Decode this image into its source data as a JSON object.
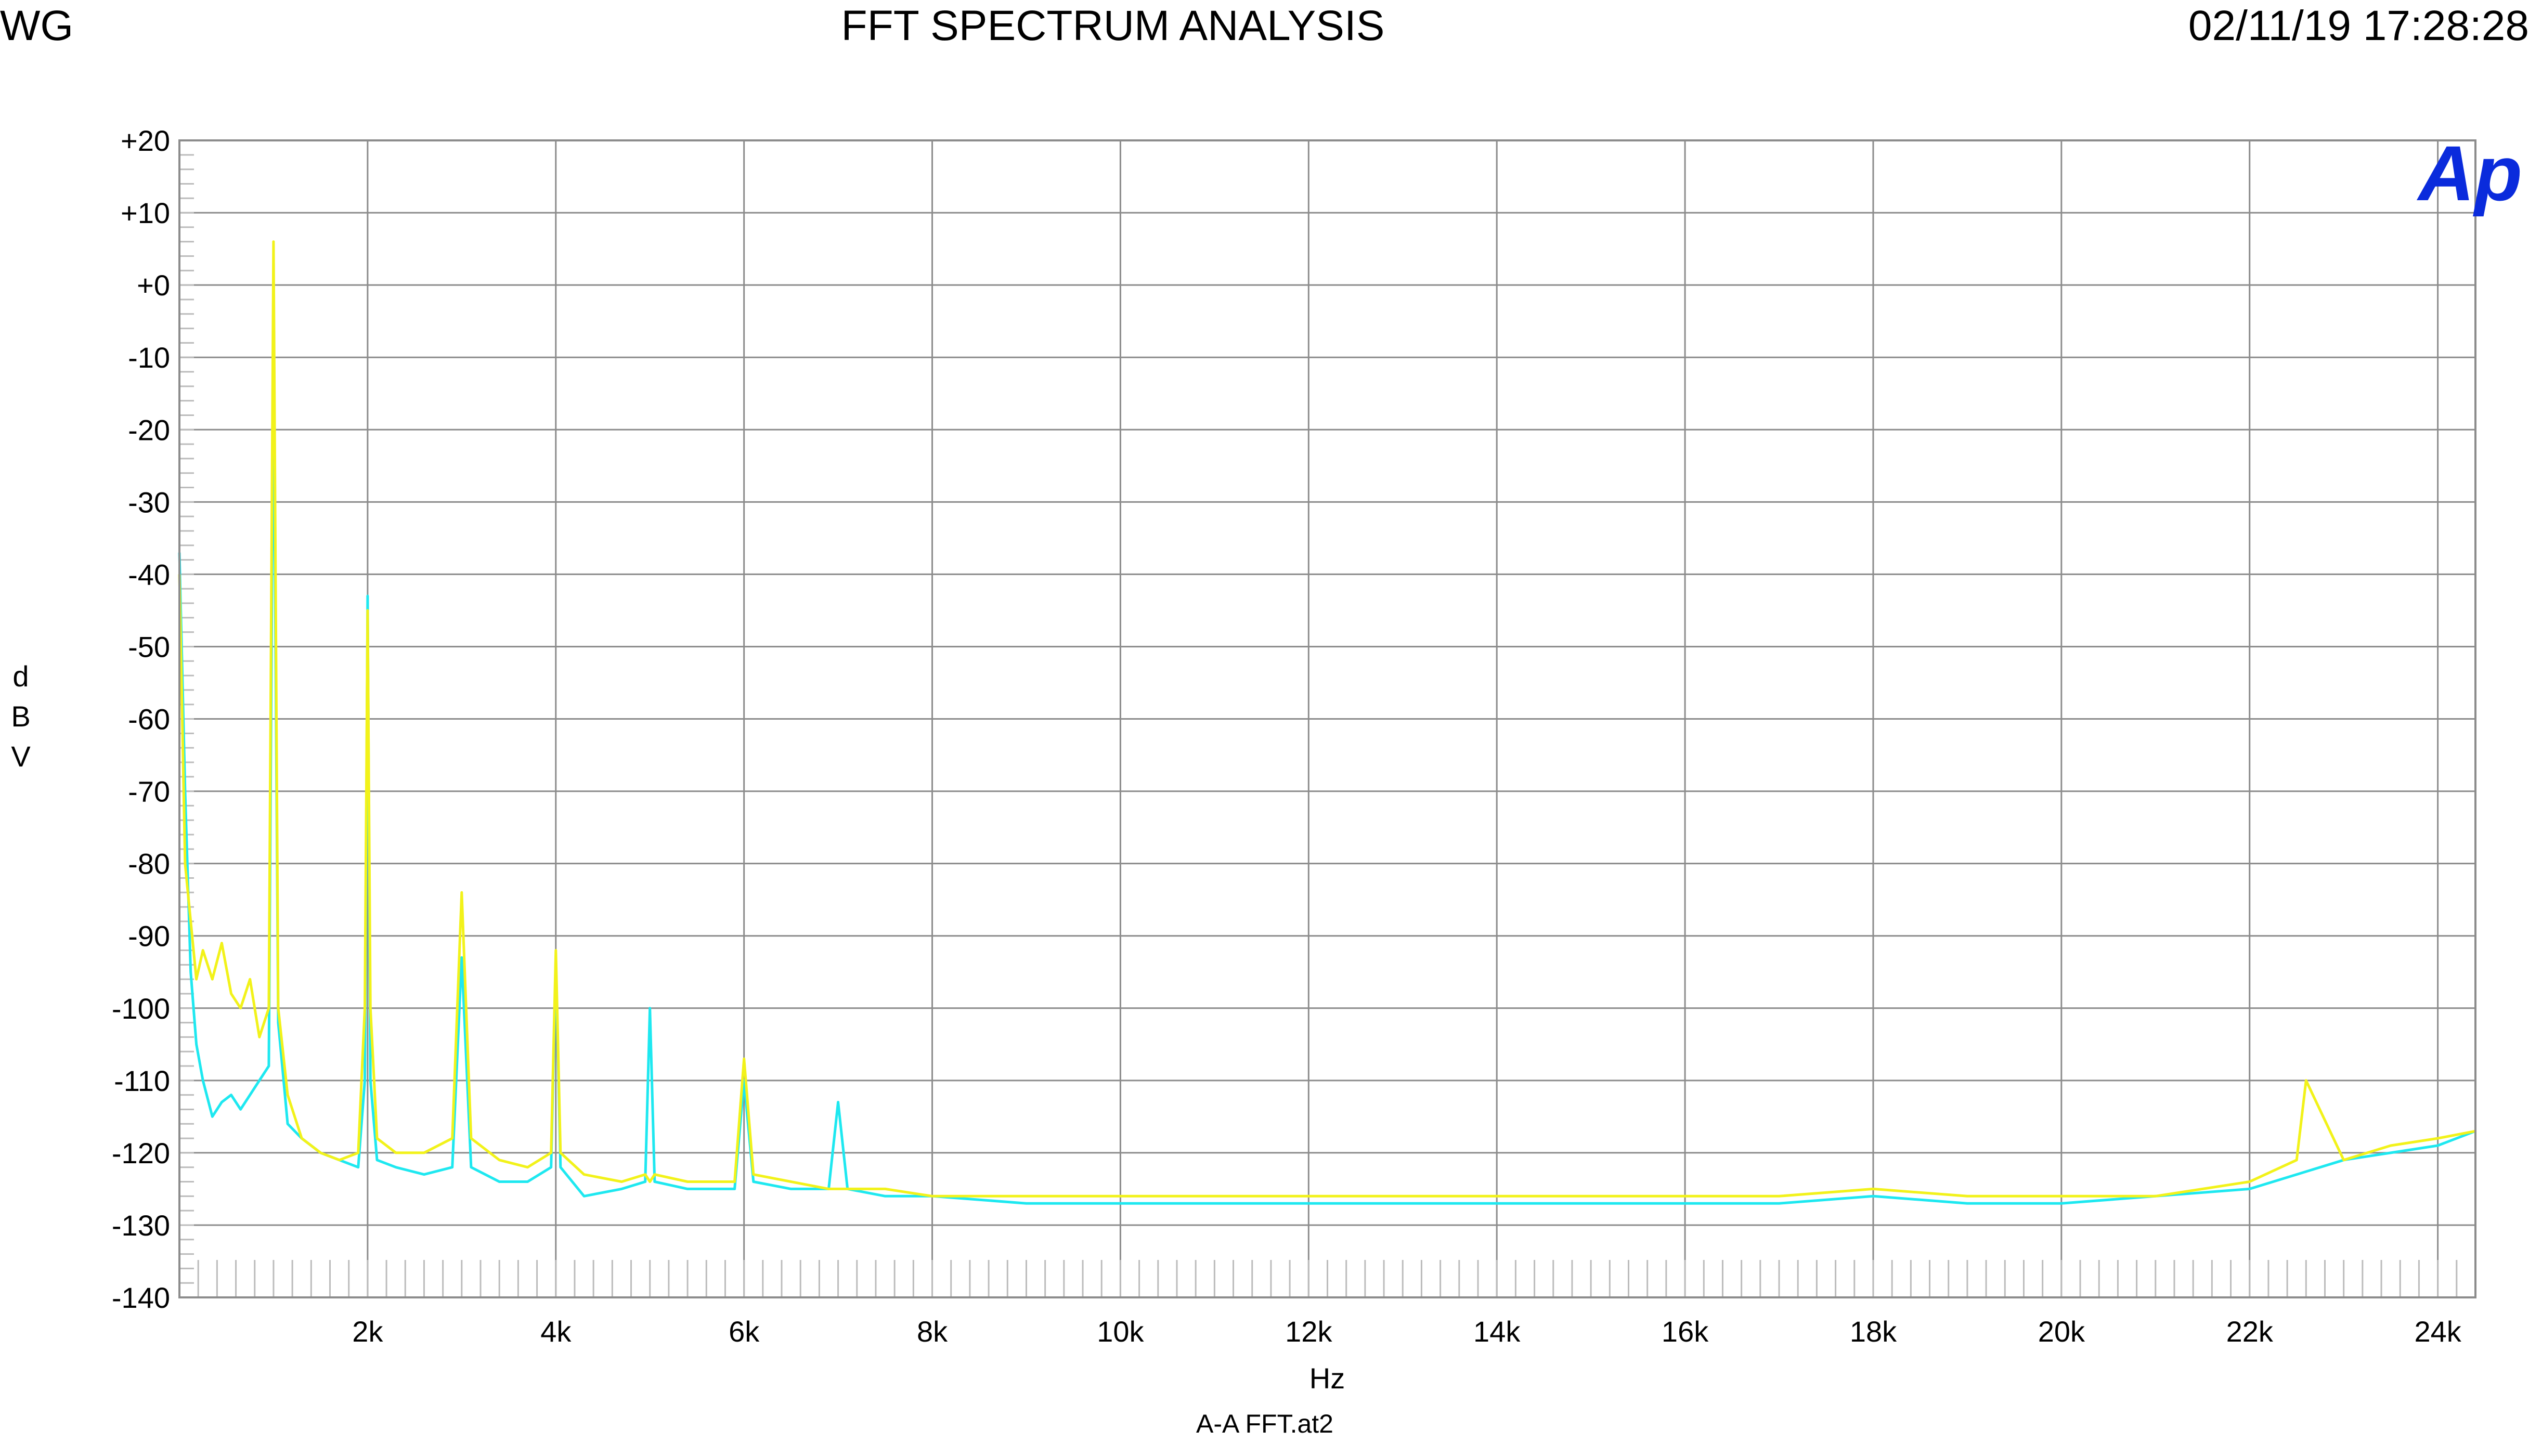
{
  "header": {
    "left": "WG",
    "title": "FFT SPECTRUM ANALYSIS",
    "timestamp": "02/11/19 17:28:28"
  },
  "logo": {
    "text": "Ap",
    "color": "#0a2bdc"
  },
  "footer": {
    "file": "A-A FFT.at2"
  },
  "colors": {
    "series1": "#1ee8f0",
    "series2": "#f2f21a",
    "grid": "#8c8c8c",
    "minor": "#bcbcbc"
  },
  "chart_data": {
    "type": "line",
    "title": "FFT SPECTRUM ANALYSIS",
    "xlabel": "Hz",
    "ylabel": "dBV",
    "xlim": [
      0,
      24400
    ],
    "ylim": [
      -140,
      20
    ],
    "grid": true,
    "x_ticks": [
      2000,
      4000,
      6000,
      8000,
      10000,
      12000,
      14000,
      16000,
      18000,
      20000,
      22000,
      24000
    ],
    "x_tick_labels": [
      "2k",
      "4k",
      "6k",
      "8k",
      "10k",
      "12k",
      "14k",
      "16k",
      "18k",
      "20k",
      "22k",
      "24k"
    ],
    "y_ticks": [
      20,
      10,
      0,
      -10,
      -20,
      -30,
      -40,
      -50,
      -60,
      -70,
      -80,
      -90,
      -100,
      -110,
      -120,
      -130,
      -140
    ],
    "y_tick_labels": [
      "+20",
      "+10",
      "+0",
      "-10",
      "-20",
      "-30",
      "-40",
      "-50",
      "-60",
      "-70",
      "-80",
      "-90",
      "-100",
      "-110",
      "-120",
      "-130",
      "-140"
    ],
    "series": [
      {
        "color": "#1ee8f0",
        "x": [
          0,
          60,
          120,
          180,
          250,
          350,
          450,
          550,
          650,
          750,
          850,
          950,
          1000,
          1050,
          1150,
          1300,
          1500,
          1700,
          1900,
          1970,
          2000,
          2030,
          2100,
          2300,
          2600,
          2900,
          3000,
          3100,
          3400,
          3700,
          3950,
          4000,
          4050,
          4300,
          4700,
          4950,
          5000,
          5050,
          5400,
          5900,
          6000,
          6100,
          6500,
          6900,
          7000,
          7100,
          7500,
          8000,
          9000,
          10000,
          11000,
          12000,
          13000,
          14000,
          15000,
          16000,
          17000,
          18000,
          19000,
          20000,
          21000,
          22000,
          22500,
          23000,
          23500,
          24000,
          24400
        ],
        "y": [
          -37,
          -70,
          -95,
          -105,
          -110,
          -115,
          -113,
          -112,
          -114,
          -112,
          -110,
          -108,
          -10,
          -102,
          -116,
          -118,
          -120,
          -121,
          -122,
          -110,
          -43,
          -110,
          -121,
          -122,
          -123,
          -122,
          -93,
          -122,
          -124,
          -124,
          -122,
          -93,
          -122,
          -126,
          -125,
          -124,
          -100,
          -124,
          -125,
          -125,
          -110,
          -124,
          -125,
          -125,
          -113,
          -125,
          -126,
          -126,
          -127,
          -127,
          -127,
          -127,
          -127,
          -127,
          -127,
          -127,
          -127,
          -126,
          -127,
          -127,
          -126,
          -125,
          -123,
          -121,
          -120,
          -119,
          -117
        ]
      },
      {
        "color": "#f2f21a",
        "x": [
          0,
          60,
          120,
          180,
          250,
          350,
          450,
          550,
          650,
          750,
          850,
          950,
          1000,
          1050,
          1150,
          1300,
          1500,
          1700,
          1900,
          1970,
          2000,
          2030,
          2100,
          2300,
          2600,
          2900,
          3000,
          3100,
          3400,
          3700,
          3950,
          4000,
          4050,
          4300,
          4700,
          4950,
          5000,
          5050,
          5400,
          5900,
          6000,
          6100,
          6500,
          6900,
          7000,
          7100,
          7500,
          8000,
          9000,
          10000,
          11000,
          12000,
          13000,
          14000,
          15000,
          16000,
          17000,
          18000,
          19000,
          20000,
          21000,
          22000,
          22500,
          22600,
          23000,
          23500,
          24000,
          24400
        ],
        "y": [
          -40,
          -80,
          -88,
          -96,
          -92,
          -96,
          -91,
          -98,
          -100,
          -96,
          -104,
          -100,
          6,
          -100,
          -112,
          -118,
          -120,
          -121,
          -120,
          -100,
          -45,
          -100,
          -118,
          -120,
          -120,
          -118,
          -84,
          -118,
          -121,
          -122,
          -120,
          -92,
          -120,
          -123,
          -124,
          -123,
          -124,
          -123,
          -124,
          -124,
          -107,
          -123,
          -124,
          -125,
          -125,
          -125,
          -125,
          -126,
          -126,
          -126,
          -126,
          -126,
          -126,
          -126,
          -126,
          -126,
          -126,
          -125,
          -126,
          -126,
          -126,
          -124,
          -121,
          -110,
          -121,
          -119,
          -118,
          -117
        ]
      }
    ]
  }
}
